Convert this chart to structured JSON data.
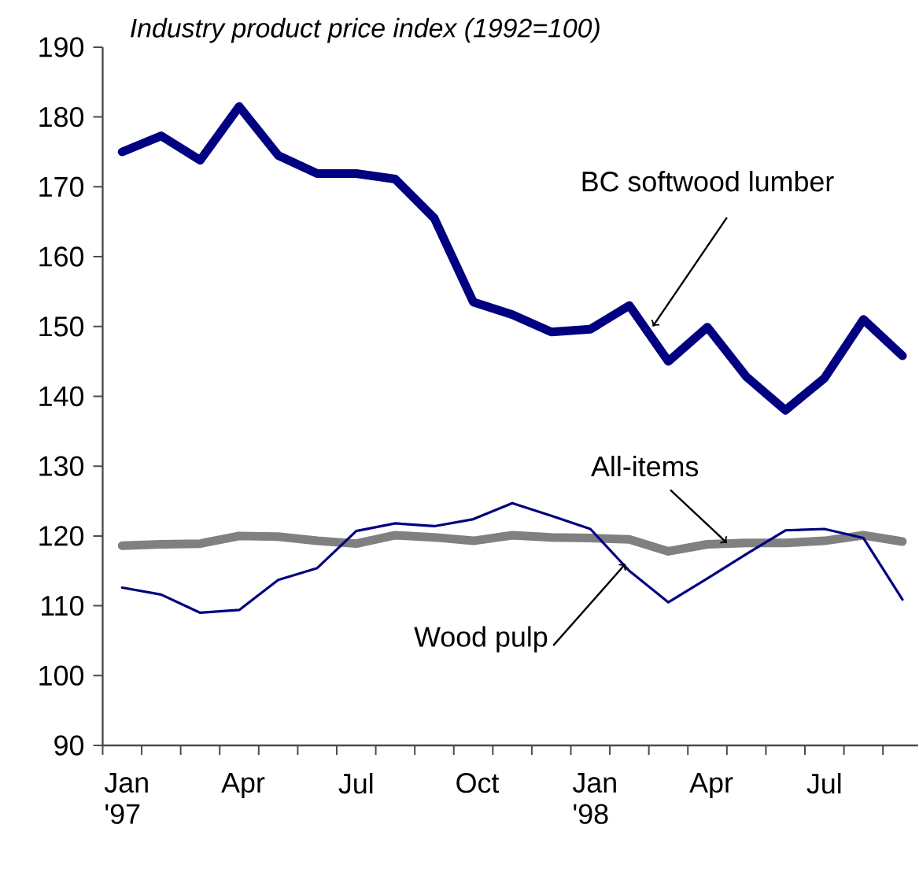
{
  "chart_data": {
    "type": "line",
    "title": "*Industry product price index (1992=100)*",
    "x": [
      "1997-01",
      "1997-02",
      "1997-03",
      "1997-04",
      "1997-05",
      "1997-06",
      "1997-07",
      "1997-08",
      "1997-09",
      "1997-10",
      "1997-11",
      "1997-12",
      "1998-01",
      "1998-02",
      "1998-03",
      "1998-04",
      "1998-05",
      "1998-06",
      "1998-07",
      "1998-08",
      "1998-09"
    ],
    "series": [
      {
        "color": "#000080",
        "values": [
          175.0,
          177.3,
          173.8,
          181.5,
          174.5,
          171.9,
          171.9,
          171.1,
          165.5,
          153.5,
          151.7,
          149.2,
          149.6,
          153.0,
          145.0,
          149.9,
          142.8,
          138.0,
          142.6,
          151.0,
          145.8
        ]
      },
      {
        "color": "#808080",
        "values": [
          118.6,
          118.8,
          118.9,
          120.0,
          119.9,
          119.3,
          118.9,
          120.1,
          119.8,
          119.3,
          120.1,
          119.8,
          119.7,
          119.5,
          117.8,
          118.8,
          119.0,
          119.0,
          119.3,
          120.1,
          119.2
        ]
      },
      {
        "color": "#000080",
        "values": [
          112.6,
          111.6,
          109.0,
          109.4,
          113.7,
          115.4,
          120.7,
          121.8,
          121.4,
          122.4,
          124.7,
          122.9,
          121.0,
          115.0,
          110.5,
          113.9,
          117.4,
          120.8,
          121.0,
          119.7,
          110.9
        ]
      }
    ],
    "annotations": [
      {
        "text": "BC softwood lumber",
        "x": "1998-02-19",
        "y": 150
      },
      {
        "text": "All-items",
        "x": "1998-04-16",
        "y": 119
      },
      {
        "text": "Wood pulp",
        "x": "1998-01-28",
        "y": 116
      }
    ],
    "xlim": [
      "1996-12-16",
      "1998-09-13"
    ],
    "xticks": [
      {
        "value": "1997-01",
        "label": "Jan '97"
      },
      {
        "value": "1997-04",
        "label": "Apr"
      },
      {
        "value": "1997-07",
        "label": "Jul"
      },
      {
        "value": "1997-10",
        "label": "Oct"
      },
      {
        "value": "1998-01",
        "label": "Jan '98"
      },
      {
        "value": "1998-04",
        "label": "Apr"
      },
      {
        "value": "1998-07",
        "label": "Jul"
      }
    ],
    "ylim": [
      90,
      190
    ],
    "yticks": [
      90,
      100,
      110,
      120,
      130,
      140,
      150,
      160,
      170,
      180,
      190
    ],
    "grid": false
  }
}
